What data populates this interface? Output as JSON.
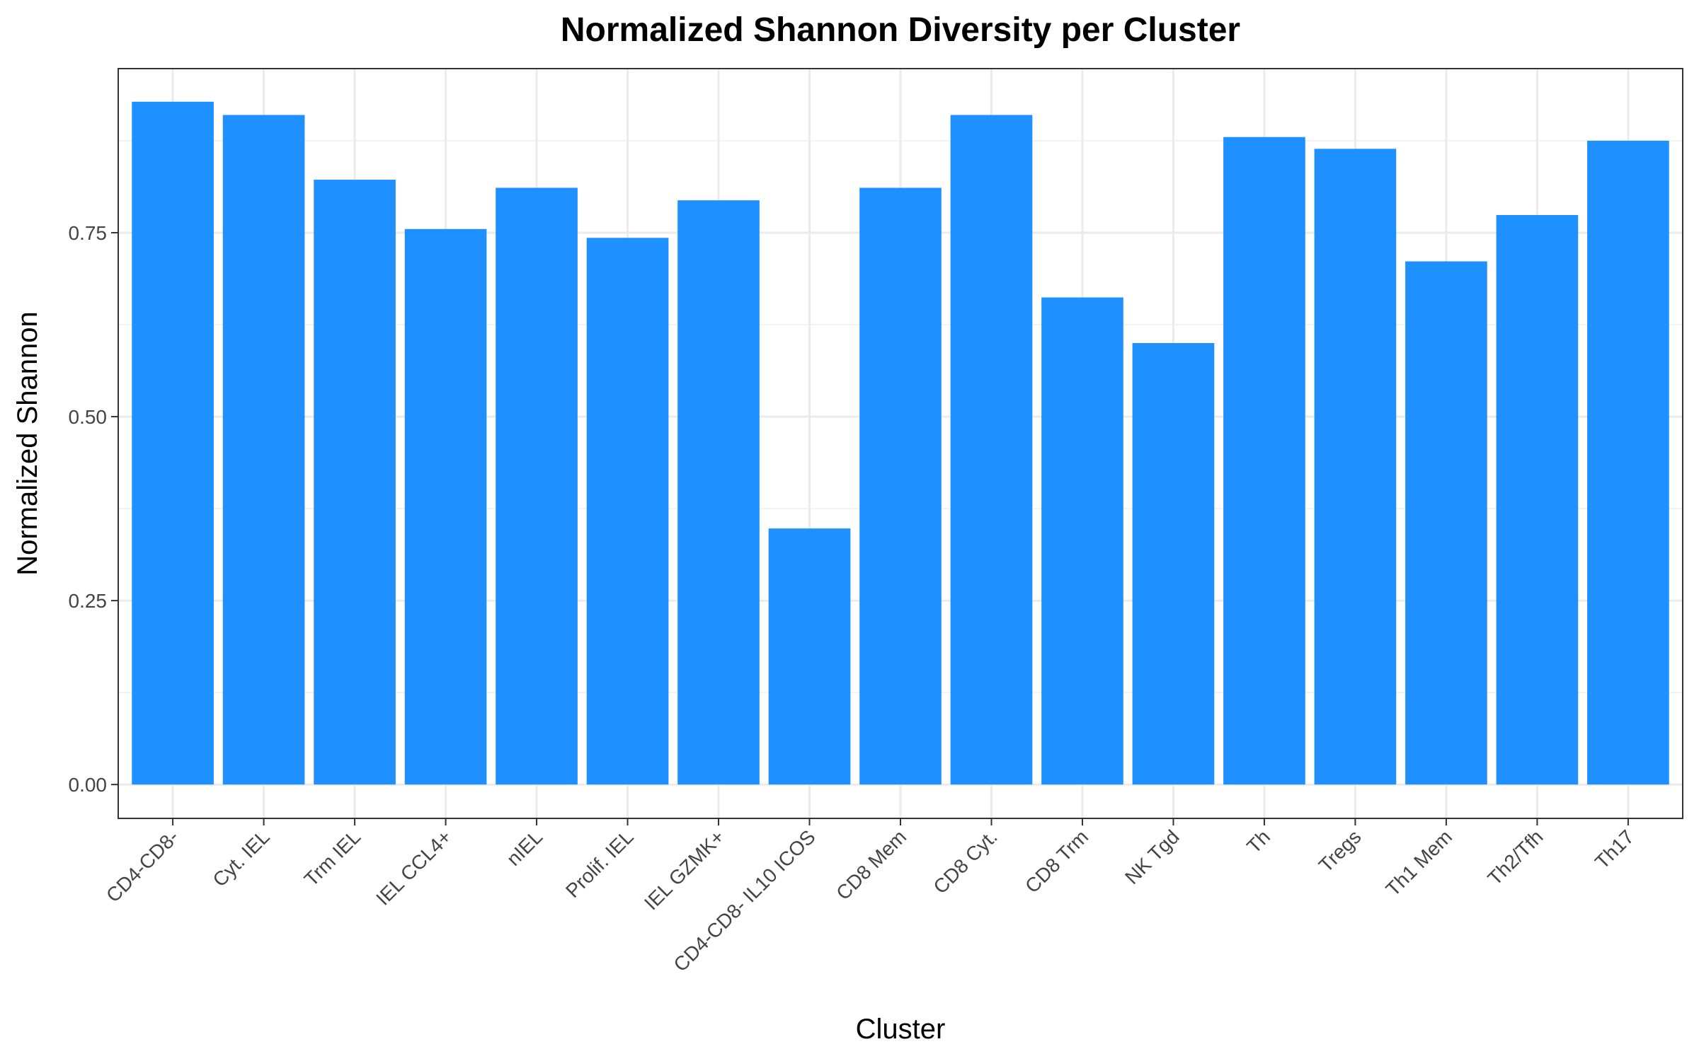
{
  "chart_data": {
    "type": "bar",
    "title": "Normalized Shannon Diversity per Cluster",
    "xlabel": "Cluster",
    "ylabel": "Normalized Shannon",
    "categories": [
      "CD4-CD8-",
      "Cyt. IEL",
      "Trm IEL",
      "IEL CCL4+",
      "nIEL",
      "Prolif. IEL",
      "IEL GZMK+",
      "CD4-CD8- IL10 ICOS",
      "CD8 Mem",
      "CD8 Cyt.",
      "CD8 Trm",
      "NK Tgd",
      "Th",
      "Tregs",
      "Th1 Mem",
      "Th2/Tfh",
      "Th17"
    ],
    "values": [
      0.928,
      0.91,
      0.822,
      0.755,
      0.811,
      0.743,
      0.794,
      0.348,
      0.811,
      0.91,
      0.662,
      0.6,
      0.88,
      0.864,
      0.711,
      0.774,
      0.875
    ],
    "ylim": [
      -0.046,
      0.973
    ],
    "yticks": [
      0.0,
      0.25,
      0.5,
      0.75
    ],
    "ytick_labels": [
      "0.00",
      "0.25",
      "0.50",
      "0.75"
    ],
    "bar_color": "#1E90FF",
    "grid": true,
    "legend": "none"
  }
}
